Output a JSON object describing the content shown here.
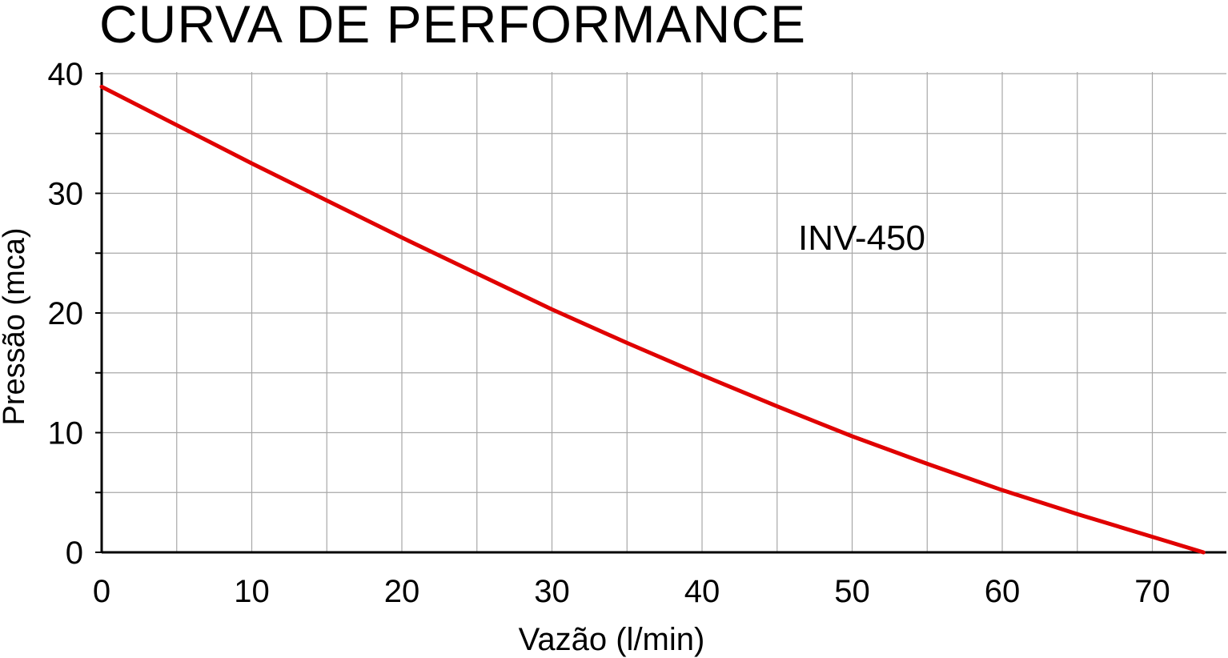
{
  "chart_data": {
    "type": "line",
    "title": "CURVA DE PERFORMANCE",
    "xlabel": "Vazão (l/min)",
    "ylabel": "Pressão (mca)",
    "xlim": [
      0,
      75
    ],
    "ylim": [
      0,
      40
    ],
    "x_ticks": [
      "0",
      "10",
      "20",
      "30",
      "40",
      "50",
      "60",
      "70"
    ],
    "y_ticks": [
      "0",
      "10",
      "20",
      "30",
      "40"
    ],
    "grid": true,
    "annotation": "INV-450",
    "series": [
      {
        "name": "INV-450",
        "color": "#e00000",
        "x": [
          0,
          5,
          10,
          15,
          20,
          25,
          30,
          35,
          40,
          45,
          50,
          55,
          60,
          65,
          70,
          73.4
        ],
        "y": [
          38.9,
          35.7,
          32.5,
          29.4,
          26.3,
          23.3,
          20.3,
          17.5,
          14.8,
          12.2,
          9.7,
          7.4,
          5.2,
          3.2,
          1.3,
          0
        ]
      }
    ]
  }
}
